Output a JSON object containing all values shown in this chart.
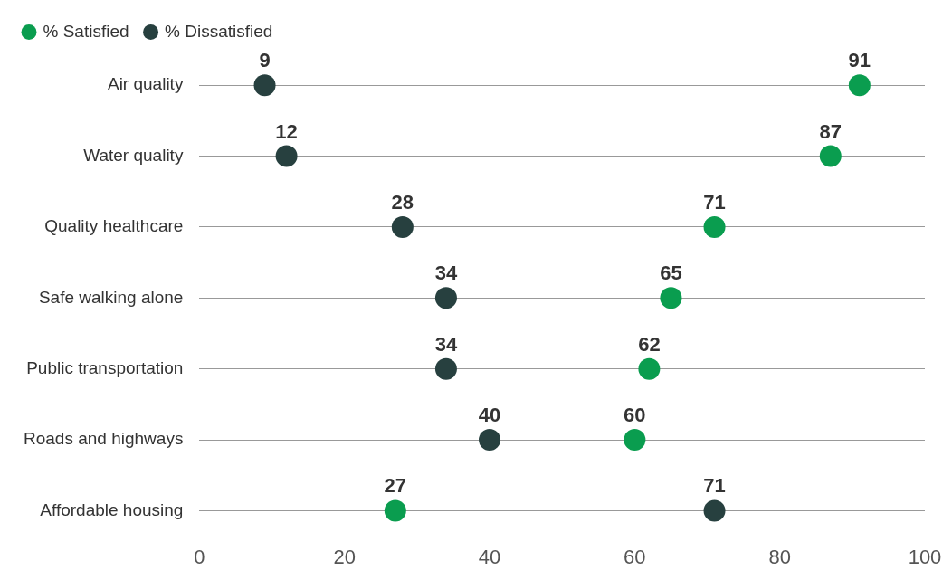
{
  "chart_data": {
    "type": "scatter",
    "orientation": "horizontal",
    "categories": [
      "Air quality",
      "Water quality",
      "Quality healthcare",
      "Safe walking alone",
      "Public transportation",
      "Roads and highways",
      "Affordable housing"
    ],
    "series": [
      {
        "name": "% Satisfied",
        "color": "#0a9d4f",
        "values": [
          91,
          87,
          71,
          65,
          62,
          60,
          27
        ]
      },
      {
        "name": "% Dissatisfied",
        "color": "#27403f",
        "values": [
          9,
          12,
          28,
          34,
          34,
          40,
          71
        ]
      }
    ],
    "xlim": [
      0,
      100
    ],
    "xticks": [
      0,
      20,
      40,
      60,
      80,
      100
    ],
    "grid": "y",
    "legend": "top left",
    "marker": "circle",
    "data_labels": true
  }
}
